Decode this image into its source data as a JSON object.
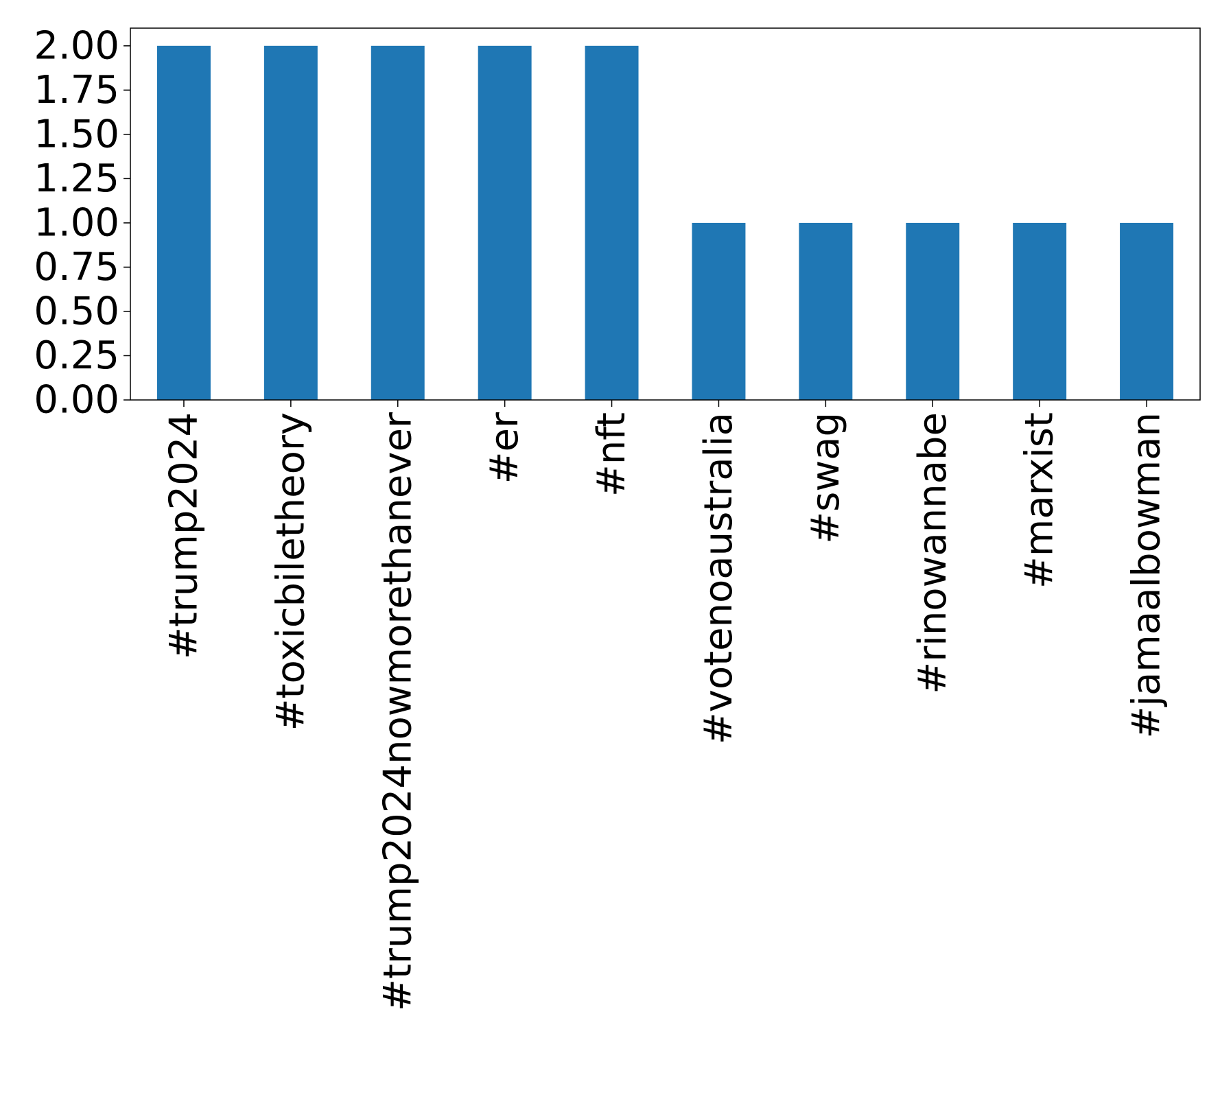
{
  "chart_data": {
    "type": "bar",
    "title": "",
    "xlabel": "",
    "ylabel": "",
    "categories": [
      "#trump2024",
      "#toxicbiletheory",
      "#trump2024nowmorethanever",
      "#er",
      "#nft",
      "#votenoaustralia",
      "#swag",
      "#rinowannabe",
      "#marxist",
      "#jamaalbowman"
    ],
    "values": [
      2,
      2,
      2,
      2,
      2,
      1,
      1,
      1,
      1,
      1
    ],
    "ylim": [
      0,
      2.1
    ],
    "yticks": [
      "0.00",
      "0.25",
      "0.50",
      "0.75",
      "1.00",
      "1.25",
      "1.50",
      "1.75",
      "2.00"
    ],
    "bar_color": "#1f77b4",
    "grid": false,
    "legend": "none"
  }
}
